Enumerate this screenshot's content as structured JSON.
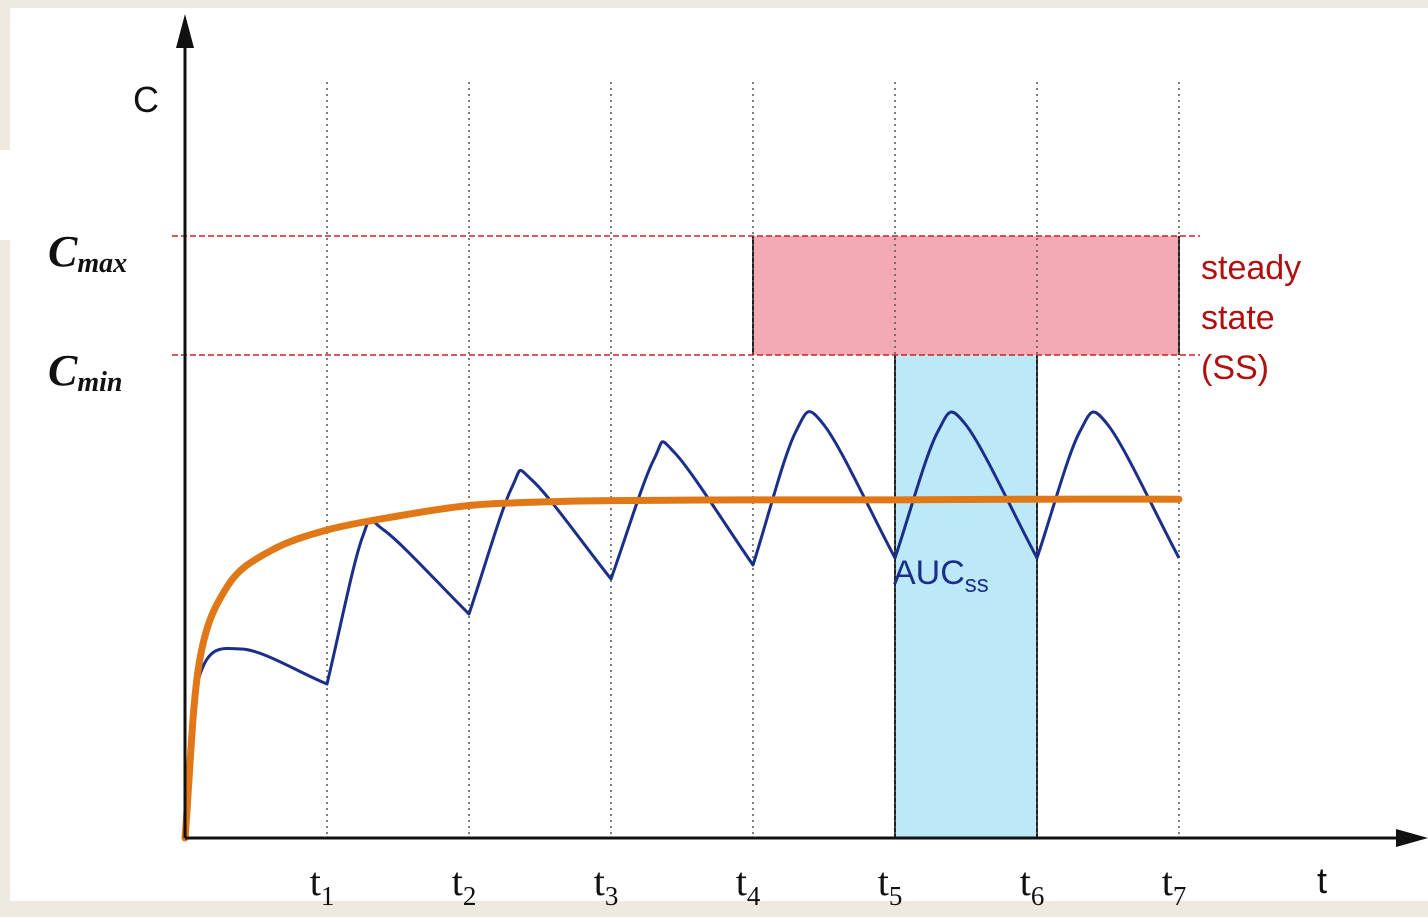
{
  "chart_data": {
    "type": "line",
    "title": "",
    "ylabel": "C",
    "xlabel": "t",
    "xlim": [
      0,
      8
    ],
    "ylim": [
      0,
      12
    ],
    "grid": "vertical dotted lines at dosing times",
    "dose_ticks": [
      {
        "x": 1,
        "label": "t",
        "sub": "1"
      },
      {
        "x": 2,
        "label": "t",
        "sub": "2"
      },
      {
        "x": 3,
        "label": "t",
        "sub": "3"
      },
      {
        "x": 4,
        "label": "t",
        "sub": "4"
      },
      {
        "x": 5,
        "label": "t",
        "sub": "5"
      },
      {
        "x": 6,
        "label": "t",
        "sub": "6"
      },
      {
        "x": 7,
        "label": "t",
        "sub": "7"
      }
    ],
    "reference_lines": [
      {
        "label": "C",
        "sub": "max",
        "y": 8.6,
        "color": "#cc2222"
      },
      {
        "label": "C",
        "sub": "min",
        "y": 6.9,
        "color": "#cc2222"
      }
    ],
    "series": [
      {
        "color": "#1b2f8a",
        "points": [
          [
            0.0,
            0.0
          ],
          [
            0.1,
            2.3
          ],
          [
            0.4,
            2.7
          ],
          [
            1.0,
            2.2
          ],
          [
            1.25,
            4.3
          ],
          [
            1.4,
            4.4
          ],
          [
            2.0,
            3.2
          ],
          [
            2.3,
            5.0
          ],
          [
            2.45,
            5.1
          ],
          [
            3.0,
            3.7
          ],
          [
            3.3,
            5.4
          ],
          [
            3.45,
            5.5
          ],
          [
            4.0,
            3.9
          ],
          [
            4.3,
            5.8
          ],
          [
            4.5,
            5.9
          ],
          [
            5.0,
            4.0
          ],
          [
            5.3,
            5.8
          ],
          [
            5.5,
            5.9
          ],
          [
            6.0,
            4.0
          ],
          [
            6.3,
            5.8
          ],
          [
            6.5,
            5.9
          ],
          [
            7.0,
            4.0
          ]
        ]
      },
      {
        "color": "#e07818",
        "points": [
          [
            0.0,
            0.0
          ],
          [
            0.1,
            2.5
          ],
          [
            0.3,
            3.6
          ],
          [
            0.6,
            4.1
          ],
          [
            1.0,
            4.4
          ],
          [
            1.5,
            4.6
          ],
          [
            2.0,
            4.75
          ],
          [
            2.5,
            4.8
          ],
          [
            3.0,
            4.82
          ],
          [
            4.0,
            4.83
          ],
          [
            5.0,
            4.83
          ],
          [
            6.0,
            4.84
          ],
          [
            7.0,
            4.84
          ]
        ]
      }
    ],
    "regions": [
      {
        "label": "steady state (SS)",
        "x": [
          4,
          7
        ],
        "color": "#f4aab4"
      },
      {
        "label": "AUC",
        "sub": "ss",
        "x": [
          5,
          6
        ],
        "color": "#bce9f8"
      }
    ],
    "annotations": {
      "steady_state": [
        "steady",
        "state",
        "(SS)"
      ],
      "auc_main": "AUC",
      "auc_sub": "ss"
    }
  }
}
